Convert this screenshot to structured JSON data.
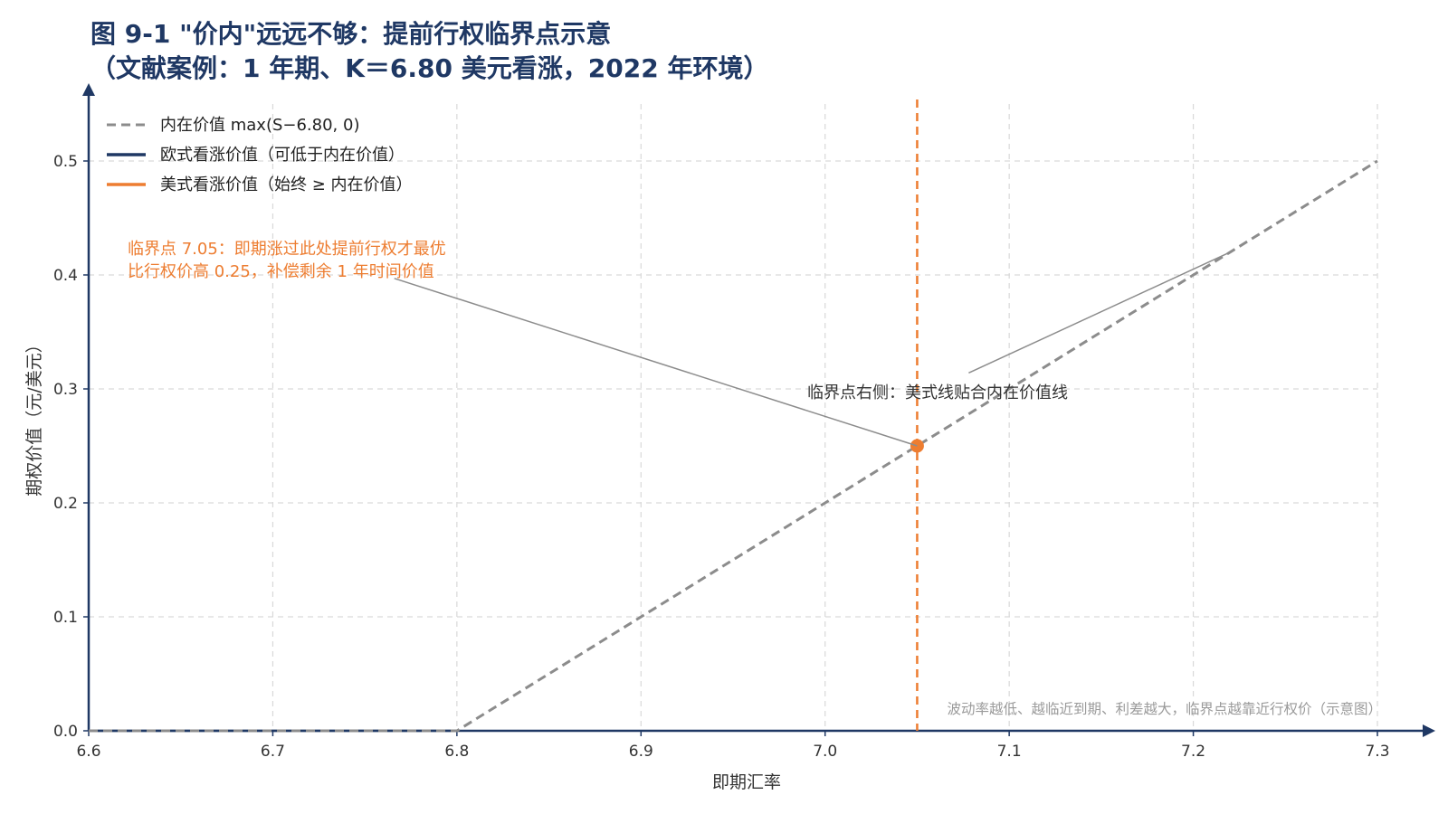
{
  "chart_data": {
    "type": "line",
    "title_line1": "图 9-1 \"价内\"远远不够：提前行权临界点示意",
    "title_line2": "（文献案例：1 年期、K＝6.80 美元看涨，2022 年环境）",
    "xlabel": "即期汇率",
    "ylabel": "期权价值（元/美元）",
    "xlim": [
      6.6,
      7.3
    ],
    "ylim": [
      0,
      0.55
    ],
    "x_ticks": [
      "6.6",
      "6.7",
      "6.8",
      "6.9",
      "7.0",
      "7.1",
      "7.2",
      "7.3"
    ],
    "y_ticks": [
      "0.0",
      "0.1",
      "0.2",
      "0.3",
      "0.4",
      "0.5"
    ],
    "grid": true,
    "legend_position": "top-left",
    "strike": 6.8,
    "series": [
      {
        "name": "内在价值 max(S−6.80, 0)",
        "style": "dashed",
        "color": "#8c8c8c",
        "x": [
          6.6,
          6.8,
          7.3
        ],
        "y": [
          0,
          0,
          0.5
        ]
      },
      {
        "name": "欧式看涨价值（可低于内在价值）",
        "style": "solid",
        "color": "#1f3864",
        "x": [
          6.6,
          6.8
        ],
        "y": [
          0,
          0
        ]
      },
      {
        "name": "美式看涨价值（始终 ≥ 内在价值）",
        "style": "solid",
        "color": "#ed7d31",
        "x": [],
        "y": []
      }
    ],
    "critical_line": {
      "x": 7.05,
      "color": "#ed7d31",
      "style": "dashed"
    },
    "critical_point": {
      "x": 7.05,
      "y": 0.25,
      "color": "#ed7d31"
    },
    "annotations": [
      {
        "line1": "临界点 7.05：即期涨过此处提前行权才最优",
        "line2": "比行权价高 0.25，补偿剩余 1 年时间价值",
        "color": "#ed7d31",
        "arrow_to": {
          "x": 7.05,
          "y": 0.25
        },
        "arrow_from": {
          "x": 6.766,
          "y": 0.397
        }
      },
      {
        "line1": "临界点右侧：美式线贴合内在价值线",
        "color": "#333333",
        "arrow_to": {
          "x": 7.22,
          "y": 0.42
        },
        "arrow_from": {
          "x": 7.078,
          "y": 0.314
        }
      }
    ],
    "footnote": "波动率越低、越临近到期、利差越大，临界点越靠近行权价（示意图）"
  }
}
